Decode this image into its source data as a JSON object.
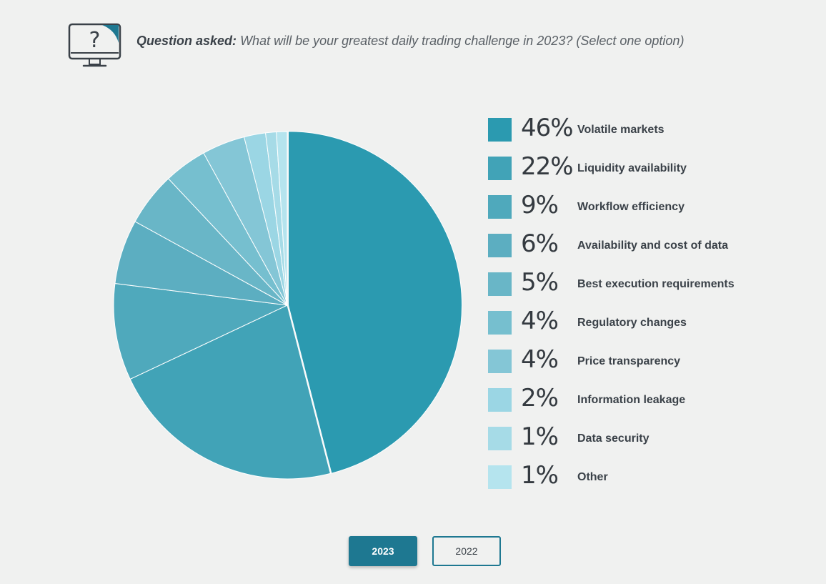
{
  "header": {
    "icon": "monitor-question-icon",
    "question_label": "Question asked:",
    "question_text": "What will be your greatest daily trading challenge in 2023? (Select one option)"
  },
  "chart_data": {
    "type": "pie",
    "title": "",
    "categories": [
      "Volatile markets",
      "Liquidity availability",
      "Workflow efficiency",
      "Availability and cost of data",
      "Best execution requirements",
      "Regulatory changes",
      "Price transparency",
      "Information leakage",
      "Data security",
      "Other"
    ],
    "values": [
      46,
      22,
      9,
      6,
      5,
      4,
      4,
      2,
      1,
      1
    ],
    "labels": [
      "46%",
      "22%",
      "9%",
      "6%",
      "5%",
      "4%",
      "4%",
      "2%",
      "1%",
      "1%"
    ],
    "colors": [
      "#2b9ab0",
      "#41a3b7",
      "#4fa9bc",
      "#5caec1",
      "#69b6c7",
      "#76bfcf",
      "#84c6d6",
      "#9bd6e4",
      "#a6dbe7",
      "#b5e4ee"
    ],
    "highlight": "Volatile markets",
    "legend_position": "right"
  },
  "controls": {
    "years": [
      {
        "label": "2023",
        "active": true
      },
      {
        "label": "2022",
        "active": false
      }
    ]
  }
}
